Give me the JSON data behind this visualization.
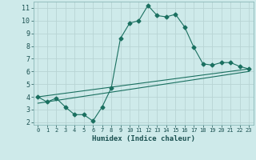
{
  "xlabel": "Humidex (Indice chaleur)",
  "background_color": "#ceeaea",
  "grid_color": "#b8d4d4",
  "line_color": "#1a7060",
  "xlim": [
    -0.5,
    23.5
  ],
  "ylim": [
    1.8,
    11.5
  ],
  "xticks": [
    0,
    1,
    2,
    3,
    4,
    5,
    6,
    7,
    8,
    9,
    10,
    11,
    12,
    13,
    14,
    15,
    16,
    17,
    18,
    19,
    20,
    21,
    22,
    23
  ],
  "yticks": [
    2,
    3,
    4,
    5,
    6,
    7,
    8,
    9,
    10,
    11
  ],
  "line1_x": [
    0,
    1,
    2,
    3,
    4,
    5,
    6,
    7,
    8,
    9,
    10,
    11,
    12,
    13,
    14,
    15,
    16,
    17,
    18,
    19,
    20,
    21,
    22,
    23
  ],
  "line1_y": [
    4.0,
    3.6,
    3.9,
    3.2,
    2.6,
    2.6,
    2.1,
    3.2,
    4.7,
    8.6,
    9.8,
    10.0,
    11.2,
    10.4,
    10.3,
    10.5,
    9.5,
    7.9,
    6.6,
    6.5,
    6.7,
    6.7,
    6.4,
    6.2
  ],
  "line2_x": [
    0,
    23
  ],
  "line2_y": [
    4.0,
    6.2
  ],
  "line3_x": [
    0,
    23
  ],
  "line3_y": [
    3.5,
    6.0
  ]
}
